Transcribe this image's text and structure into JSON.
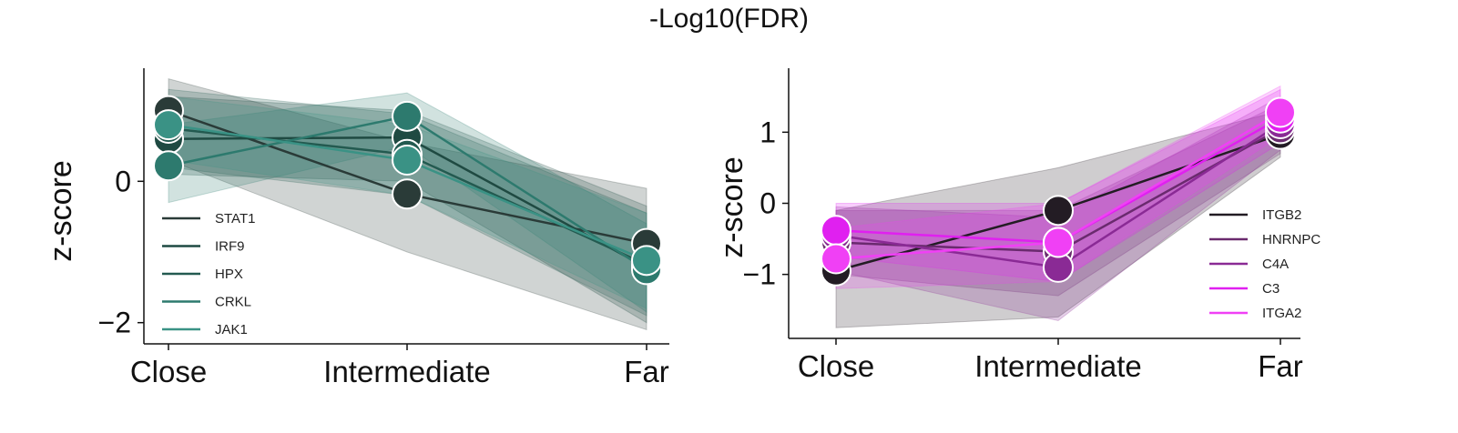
{
  "figure_title": "-Log10(FDR)",
  "chart_data": [
    {
      "type": "line",
      "title": "",
      "xlabel": "",
      "ylabel": "z-score",
      "categories": [
        "Close",
        "Intermediate",
        "Far"
      ],
      "ylim": [
        -2.3,
        1.6
      ],
      "yticks": [
        0,
        -2
      ],
      "yticklabels": [
        "0",
        "−2"
      ],
      "legend_position": "lower-left",
      "series": [
        {
          "name": "STAT1",
          "color": "#2a3b38",
          "values": [
            1.0,
            -0.18,
            -0.88
          ],
          "lower": [
            0.3,
            -1.0,
            -2.1
          ],
          "upper": [
            1.45,
            0.55,
            -0.1
          ]
        },
        {
          "name": "IRF9",
          "color": "#1f4a42",
          "values": [
            0.6,
            0.62,
            -1.22
          ],
          "lower": [
            0.1,
            0.0,
            -2.0
          ],
          "upper": [
            1.2,
            1.0,
            -0.35
          ]
        },
        {
          "name": "HPX",
          "color": "#235a50",
          "values": [
            0.75,
            0.38,
            -1.18
          ],
          "lower": [
            0.2,
            -0.2,
            -1.9
          ],
          "upper": [
            1.3,
            0.95,
            -0.45
          ]
        },
        {
          "name": "CRKL",
          "color": "#2d7a6e",
          "values": [
            0.22,
            0.92,
            -1.25
          ],
          "lower": [
            -0.3,
            0.5,
            -1.85
          ],
          "upper": [
            0.8,
            1.25,
            -0.6
          ]
        },
        {
          "name": "JAK1",
          "color": "#3a9285",
          "values": [
            0.8,
            0.3,
            -1.12
          ],
          "lower": [
            0.3,
            -0.2,
            -1.8
          ],
          "upper": [
            1.2,
            0.8,
            -0.45
          ]
        }
      ]
    },
    {
      "type": "line",
      "title": "",
      "xlabel": "",
      "ylabel": "z-score",
      "categories": [
        "Close",
        "Intermediate",
        "Far"
      ],
      "ylim": [
        -1.9,
        1.9
      ],
      "yticks": [
        1,
        0,
        -1
      ],
      "yticklabels": [
        "1",
        "0",
        "−1"
      ],
      "legend_position": "lower-right",
      "series": [
        {
          "name": "ITGB2",
          "color": "#231c24",
          "values": [
            -0.95,
            -0.1,
            0.97
          ],
          "lower": [
            -1.75,
            -1.6,
            0.65
          ],
          "upper": [
            -0.1,
            0.5,
            1.3
          ]
        },
        {
          "name": "HNRNPC",
          "color": "#6a2a6e",
          "values": [
            -0.55,
            -0.68,
            1.05
          ],
          "lower": [
            -1.0,
            -1.3,
            0.7
          ],
          "upper": [
            -0.1,
            -0.1,
            1.4
          ]
        },
        {
          "name": "C4A",
          "color": "#8a2a95",
          "values": [
            -0.45,
            -0.9,
            1.12
          ],
          "lower": [
            -0.95,
            -1.65,
            0.75
          ],
          "upper": [
            -0.05,
            -0.2,
            1.5
          ]
        },
        {
          "name": "C3",
          "color": "#e020f0",
          "values": [
            -0.38,
            -0.55,
            1.2
          ],
          "lower": [
            -0.75,
            -1.1,
            0.85
          ],
          "upper": [
            0.0,
            0.0,
            1.6
          ]
        },
        {
          "name": "ITGA2",
          "color": "#f040f5",
          "values": [
            -0.78,
            -0.55,
            1.28
          ],
          "lower": [
            -1.2,
            -1.1,
            0.95
          ],
          "upper": [
            -0.35,
            0.0,
            1.65
          ]
        }
      ]
    }
  ]
}
